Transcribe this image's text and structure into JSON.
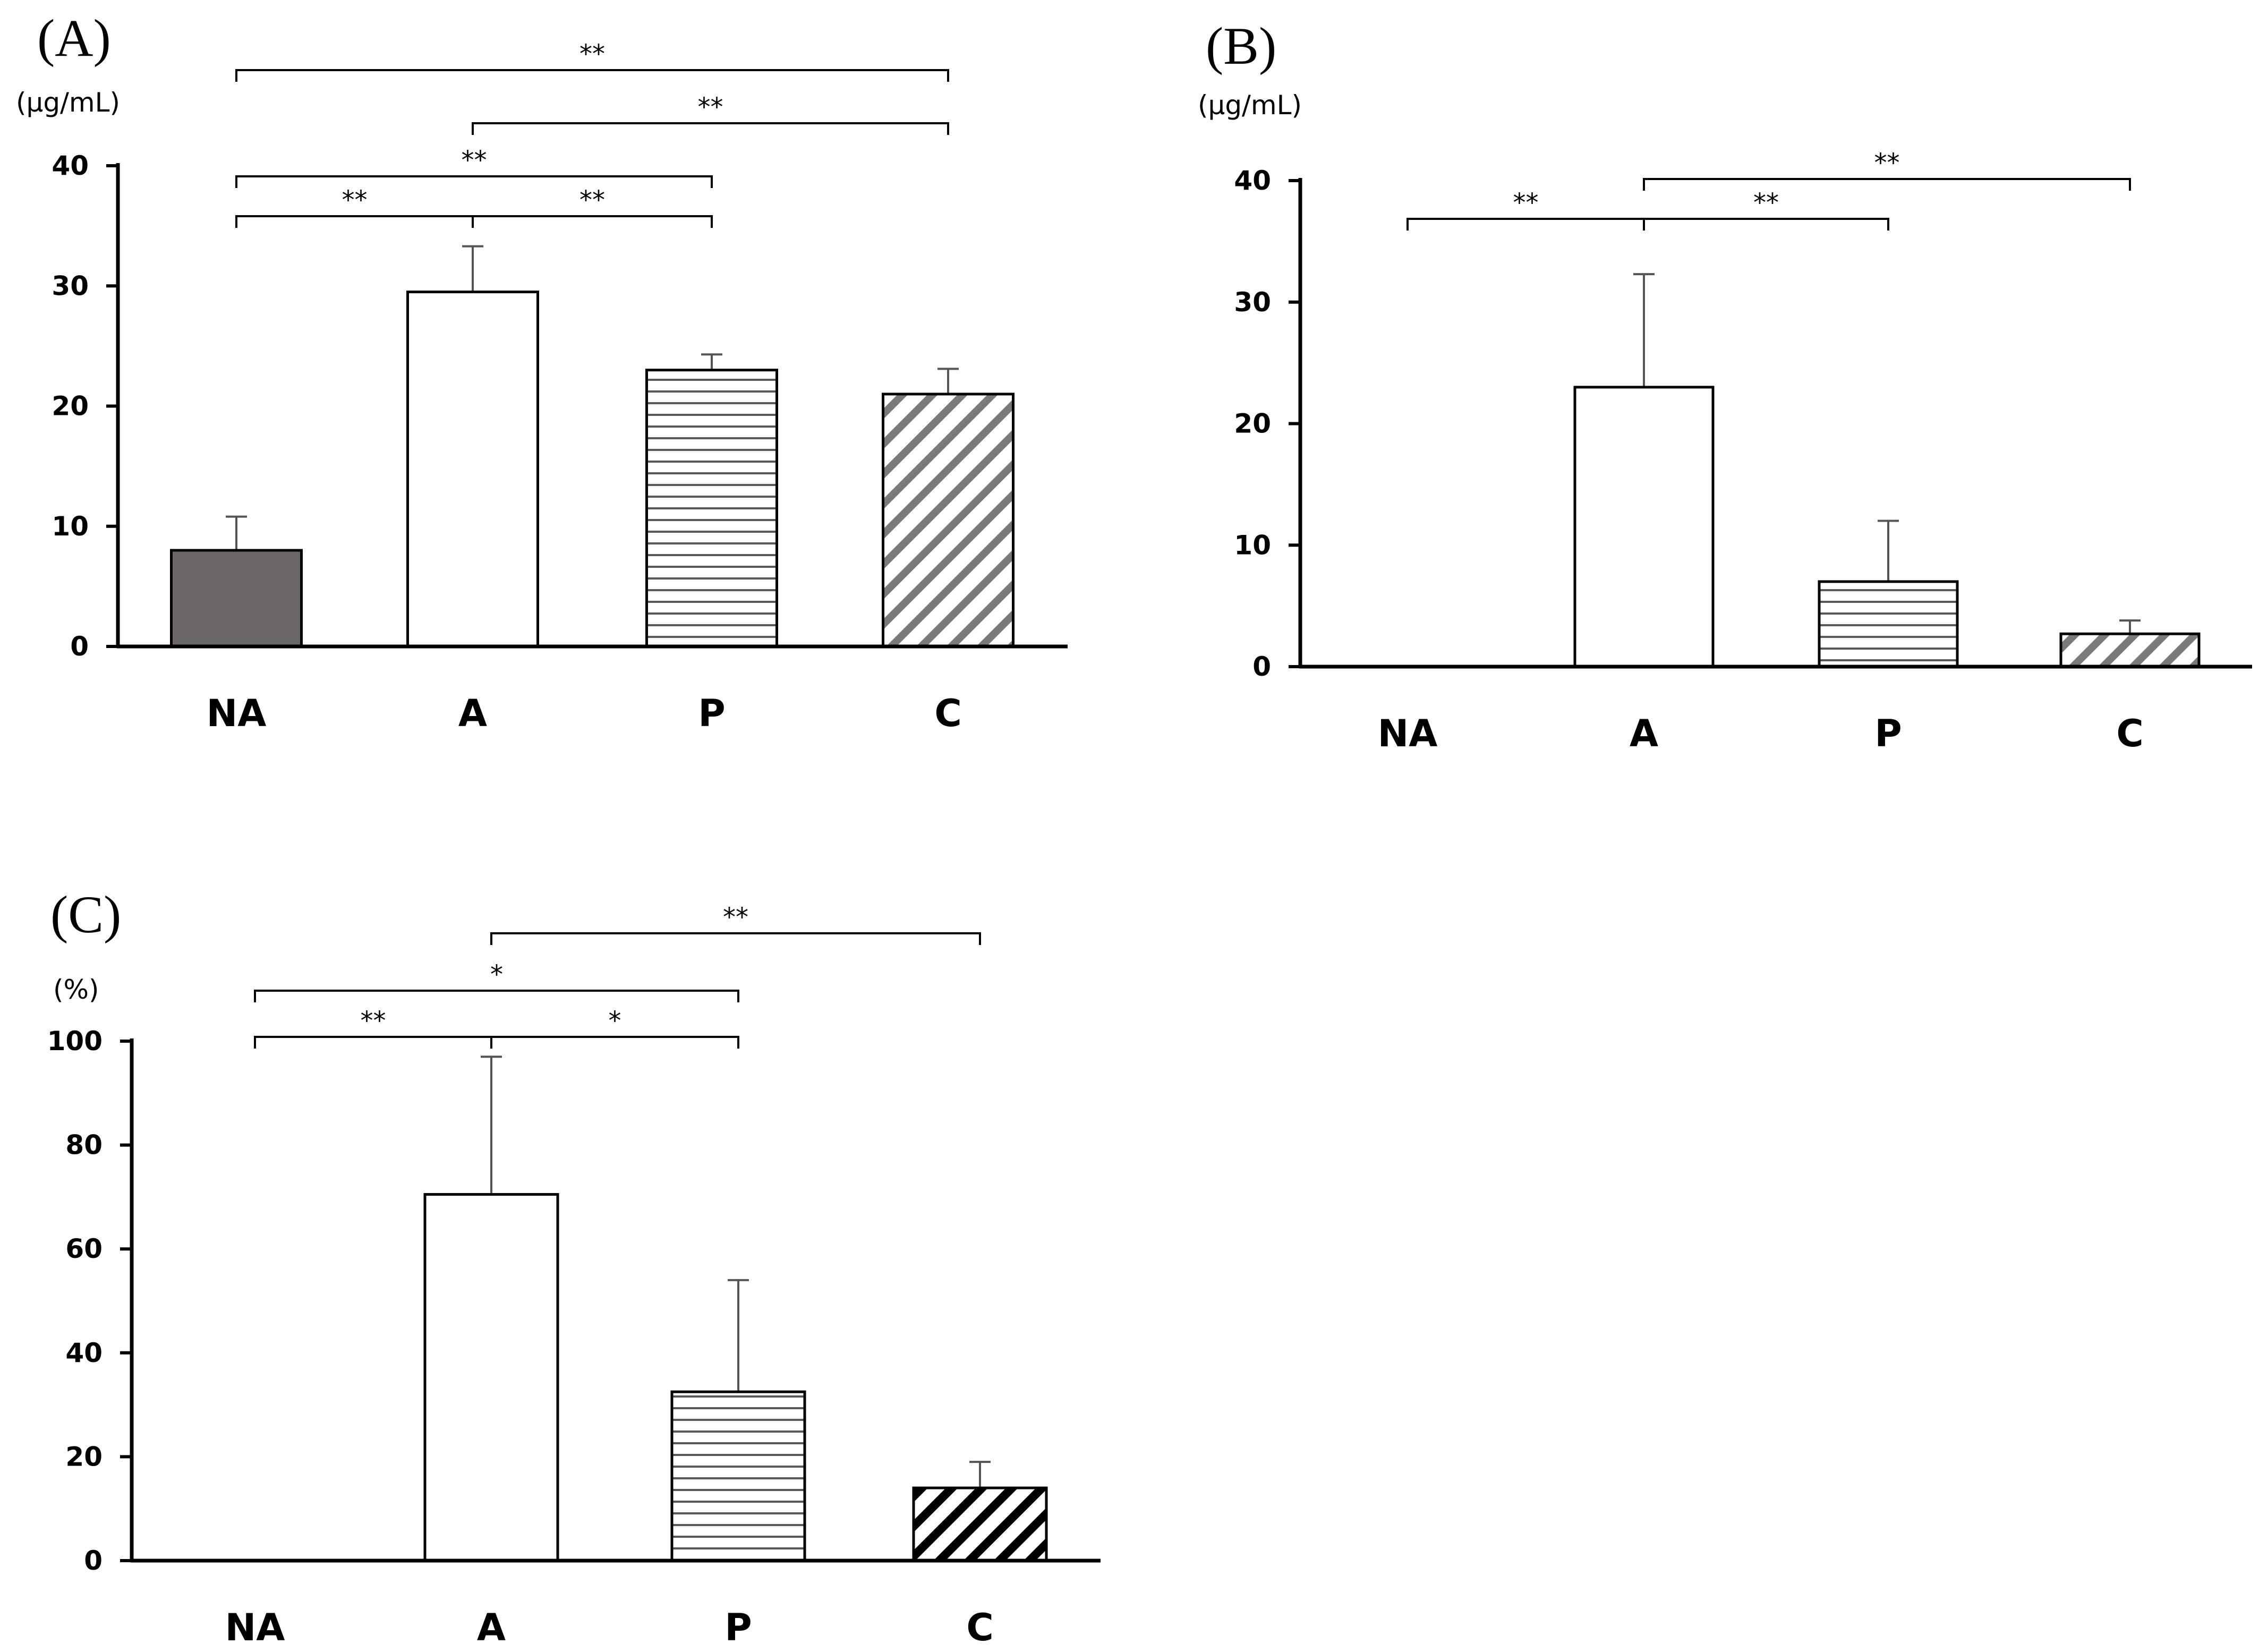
{
  "figure": {
    "colors": {
      "axis": "#000000",
      "bar_dark": "#6b6767",
      "bar_outline": "#000000",
      "stripe": "#5a5a5a",
      "error_bar": "#555555",
      "background": "#ffffff"
    }
  },
  "chart_data": [
    {
      "panel": "(A)",
      "type": "bar",
      "ylabel": "(μg/mL)",
      "ylim": [
        0,
        40
      ],
      "yticks": [
        0,
        10,
        20,
        30,
        40
      ],
      "categories": [
        "NA",
        "A",
        "P",
        "C"
      ],
      "values": [
        8,
        29.5,
        23,
        21
      ],
      "errors": [
        2.8,
        3.8,
        1.3,
        2.1
      ],
      "fills": [
        "dark",
        "white",
        "hlines",
        "diag"
      ],
      "significance": [
        {
          "from": 0,
          "to": 3,
          "label": "**",
          "level": 0
        },
        {
          "from": 1,
          "to": 3,
          "label": "**",
          "level": 1
        },
        {
          "from": 0,
          "to": 2,
          "label": "**",
          "level": 2
        },
        {
          "from": 0,
          "to": 1,
          "label": "**",
          "level": 3
        },
        {
          "from": 1,
          "to": 2,
          "label": "**",
          "level": 3
        }
      ]
    },
    {
      "panel": "(B)",
      "type": "bar",
      "ylabel": "(μg/mL)",
      "ylim": [
        0,
        40
      ],
      "yticks": [
        0,
        10,
        20,
        30,
        40
      ],
      "categories": [
        "NA",
        "A",
        "P",
        "C"
      ],
      "values": [
        0,
        23,
        7,
        2.7
      ],
      "errors": [
        0,
        9.3,
        5,
        1.1
      ],
      "fills": [
        "none",
        "white",
        "hlines",
        "diag"
      ],
      "significance": [
        {
          "from": 1,
          "to": 3,
          "label": "**",
          "level": 0
        },
        {
          "from": 0,
          "to": 1,
          "label": "**",
          "level": 1
        },
        {
          "from": 1,
          "to": 2,
          "label": "**",
          "level": 1
        }
      ]
    },
    {
      "panel": "(C)",
      "type": "bar",
      "ylabel": "(%)",
      "ylim": [
        0,
        100
      ],
      "yticks": [
        0,
        20,
        40,
        60,
        80,
        100
      ],
      "categories": [
        "NA",
        "A",
        "P",
        "C"
      ],
      "values": [
        0,
        70.5,
        32.5,
        14
      ],
      "errors": [
        0,
        26.5,
        21.5,
        5
      ],
      "fills": [
        "none",
        "white",
        "hlines",
        "diagbold"
      ],
      "significance": [
        {
          "from": 1,
          "to": 3,
          "label": "**",
          "level": 0
        },
        {
          "from": 0,
          "to": 2,
          "label": "*",
          "level": 1
        },
        {
          "from": 0,
          "to": 1,
          "label": "**",
          "level": 2
        },
        {
          "from": 1,
          "to": 2,
          "label": "*",
          "level": 2
        }
      ]
    }
  ]
}
